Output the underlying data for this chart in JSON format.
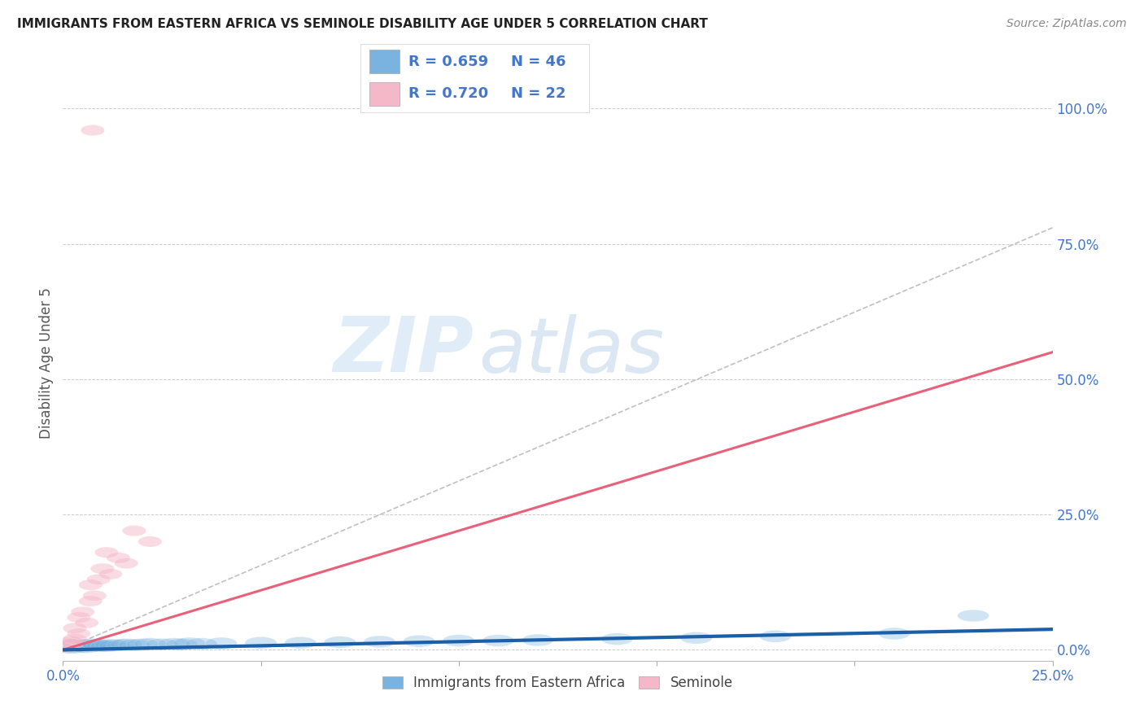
{
  "title": "IMMIGRANTS FROM EASTERN AFRICA VS SEMINOLE DISABILITY AGE UNDER 5 CORRELATION CHART",
  "source": "Source: ZipAtlas.com",
  "ylabel": "Disability Age Under 5",
  "legend_blue_r": "R = 0.659",
  "legend_blue_n": "N = 46",
  "legend_pink_r": "R = 0.720",
  "legend_pink_n": "N = 22",
  "legend_label_blue": "Immigrants from Eastern Africa",
  "legend_label_pink": "Seminole",
  "xlim": [
    0.0,
    0.25
  ],
  "ylim": [
    -0.02,
    1.08
  ],
  "ytick_vals": [
    0.0,
    0.25,
    0.5,
    0.75,
    1.0
  ],
  "ytick_labels": [
    "0.0%",
    "25.0%",
    "50.0%",
    "75.0%",
    "100.0%"
  ],
  "xtick_vals": [
    0.0,
    0.05,
    0.1,
    0.15,
    0.2,
    0.25
  ],
  "xtick_labels": [
    "0.0%",
    "",
    "",
    "",
    "",
    "25.0%"
  ],
  "blue_scatter_color": "#7ab3e0",
  "pink_scatter_color": "#f5b8c8",
  "blue_line_color": "#1a5fa8",
  "pink_line_color": "#e8607a",
  "dashed_line_color": "#c0c0c0",
  "axis_tick_color": "#4477cc",
  "ylabel_color": "#555555",
  "title_color": "#222222",
  "source_color": "#888888",
  "background_color": "#ffffff",
  "grid_color": "#cccccc",
  "blue_line_y0": 0.0,
  "blue_line_y1": 0.038,
  "pink_line_y0": 0.0,
  "pink_line_y1": 0.55,
  "dashed_line_y0": 0.0,
  "dashed_line_y1": 0.78,
  "blue_scatter_x": [
    0.001,
    0.001,
    0.002,
    0.002,
    0.003,
    0.003,
    0.003,
    0.004,
    0.004,
    0.005,
    0.005,
    0.006,
    0.006,
    0.007,
    0.007,
    0.008,
    0.009,
    0.009,
    0.01,
    0.011,
    0.012,
    0.013,
    0.015,
    0.016,
    0.018,
    0.02,
    0.022,
    0.025,
    0.028,
    0.03,
    0.032,
    0.035,
    0.04,
    0.05,
    0.06,
    0.07,
    0.08,
    0.09,
    0.1,
    0.11,
    0.12,
    0.14,
    0.16,
    0.18,
    0.21,
    0.23
  ],
  "blue_scatter_y": [
    0.005,
    0.008,
    0.004,
    0.009,
    0.005,
    0.007,
    0.01,
    0.006,
    0.008,
    0.006,
    0.009,
    0.005,
    0.008,
    0.007,
    0.01,
    0.008,
    0.007,
    0.009,
    0.008,
    0.007,
    0.009,
    0.008,
    0.009,
    0.01,
    0.009,
    0.01,
    0.011,
    0.01,
    0.011,
    0.01,
    0.012,
    0.011,
    0.012,
    0.013,
    0.013,
    0.014,
    0.015,
    0.016,
    0.017,
    0.017,
    0.018,
    0.02,
    0.022,
    0.025,
    0.03,
    0.063
  ],
  "pink_scatter_x": [
    0.001,
    0.001,
    0.002,
    0.002,
    0.003,
    0.003,
    0.004,
    0.004,
    0.005,
    0.006,
    0.007,
    0.007,
    0.008,
    0.009,
    0.01,
    0.011,
    0.012,
    0.014,
    0.016,
    0.018,
    0.022,
    0.0075
  ],
  "pink_scatter_y": [
    0.005,
    0.008,
    0.01,
    0.015,
    0.02,
    0.04,
    0.03,
    0.06,
    0.07,
    0.05,
    0.09,
    0.12,
    0.1,
    0.13,
    0.15,
    0.18,
    0.14,
    0.17,
    0.16,
    0.22,
    0.2,
    0.96
  ],
  "watermark_zip": "ZIP",
  "watermark_atlas": "atlas",
  "scatter_size_blue": 350,
  "scatter_size_pink": 280,
  "scatter_alpha_blue": 0.35,
  "scatter_alpha_pink": 0.5
}
